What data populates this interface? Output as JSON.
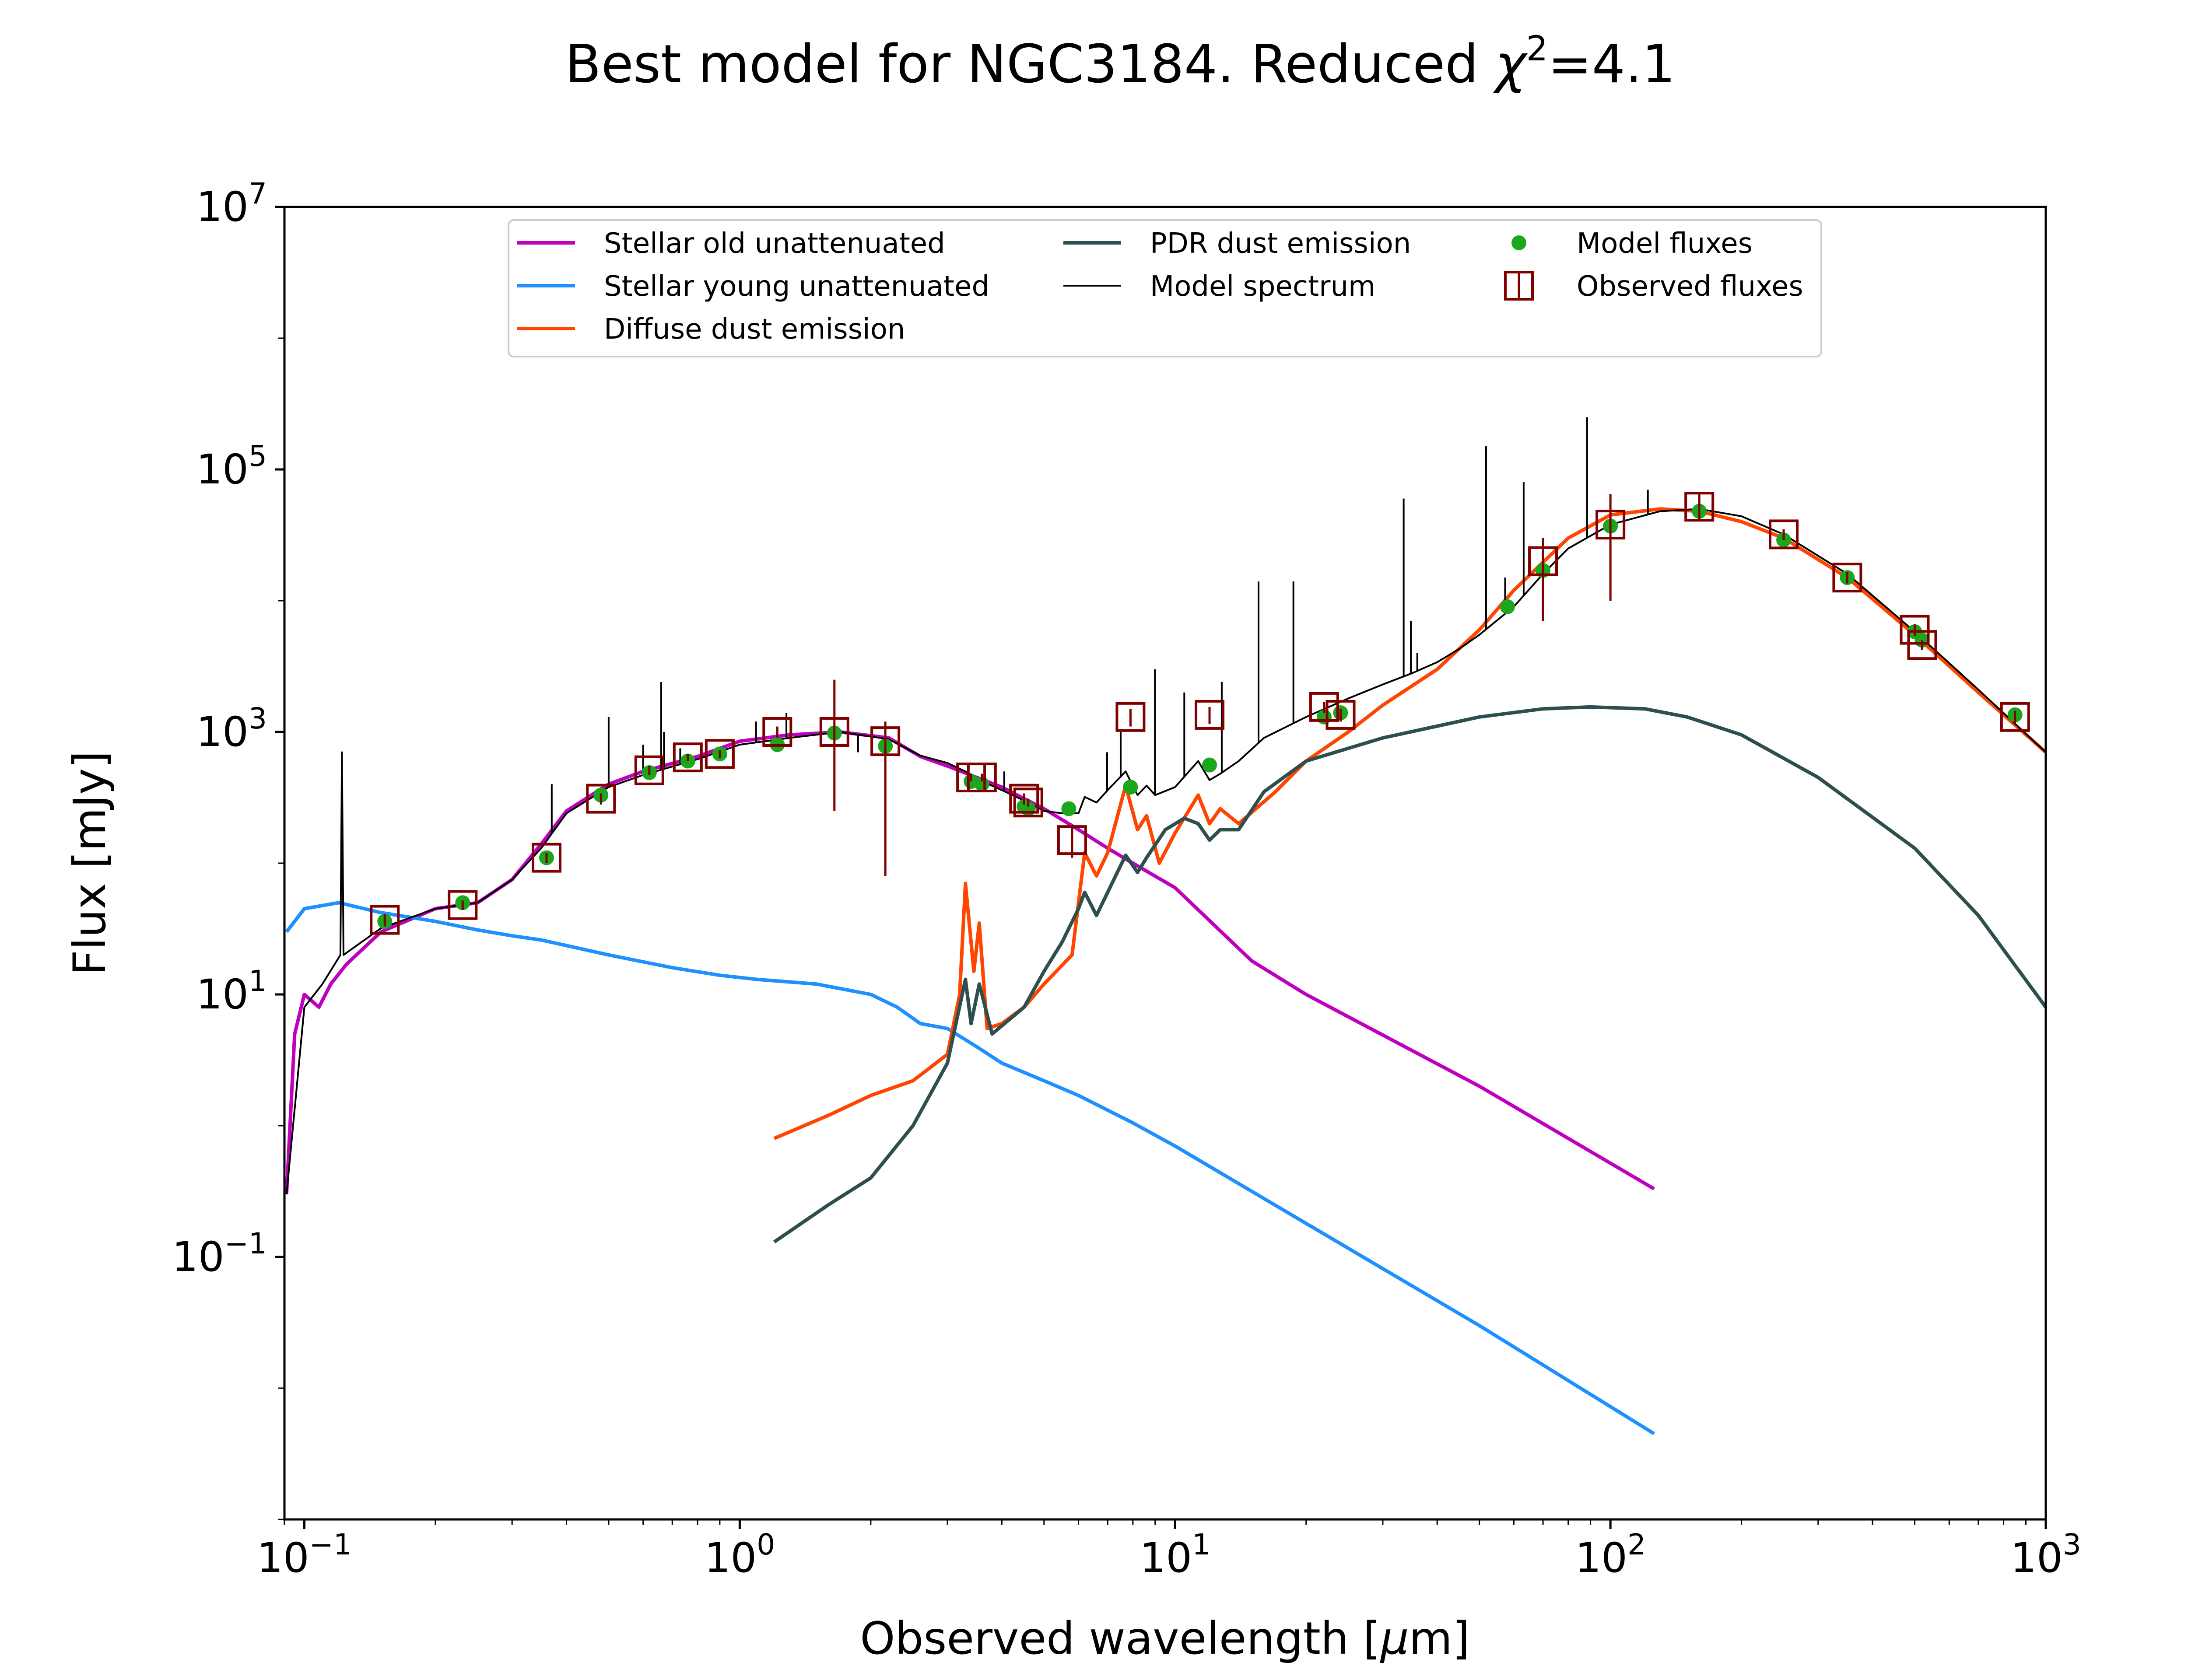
{
  "chart_data": {
    "type": "line",
    "title_main": "Best model for NGC3184. Reduced ",
    "title_chi": "χ",
    "title_chi_sup": "2",
    "title_value": "=4.1",
    "xlabel_prefix": "Observed wavelength [",
    "xlabel_unit_mu": "μ",
    "xlabel_suffix": "m]",
    "ylabel": "Flux [mJy]",
    "xscale": "log",
    "yscale": "log",
    "xlim": [
      0.09,
      1000
    ],
    "ylim": [
      0.001,
      10000000
    ],
    "x_ticks": [
      {
        "value": 0.1,
        "base": "10",
        "exp": "−1"
      },
      {
        "value": 1,
        "base": "10",
        "exp": "0"
      },
      {
        "value": 10,
        "base": "10",
        "exp": "1"
      },
      {
        "value": 100,
        "base": "10",
        "exp": "2"
      },
      {
        "value": 1000,
        "base": "10",
        "exp": "3"
      }
    ],
    "y_ticks": [
      {
        "value": 0.1,
        "base": "10",
        "exp": "−1"
      },
      {
        "value": 10,
        "base": "10",
        "exp": "1"
      },
      {
        "value": 1000,
        "base": "10",
        "exp": "3"
      },
      {
        "value": 100000,
        "base": "10",
        "exp": "5"
      },
      {
        "value": 10000000,
        "base": "10",
        "exp": "7"
      }
    ],
    "legend_position": "upper center",
    "legend": [
      {
        "label": "Stellar old unattenuated",
        "color": "#bf00bf",
        "marker": "line"
      },
      {
        "label": "Stellar young unattenuated",
        "color": "#1e90ff",
        "marker": "line"
      },
      {
        "label": "Diffuse dust emission",
        "color": "#ff4500",
        "marker": "line"
      },
      {
        "label": "PDR dust emission",
        "color": "#2f4f4f",
        "marker": "line"
      },
      {
        "label": "Model spectrum",
        "color": "#000000",
        "marker": "thin-line"
      },
      {
        "label": "Model fluxes",
        "color": "#1ca61c",
        "marker": "dot"
      },
      {
        "label": "Observed fluxes",
        "color": "#800000",
        "marker": "square"
      }
    ],
    "series": [
      {
        "name": "Stellar old unattenuated",
        "color": "#bf00bf",
        "x": [
          0.091,
          0.095,
          0.1,
          0.108,
          0.115,
          0.125,
          0.15,
          0.2,
          0.25,
          0.3,
          0.35,
          0.4,
          0.5,
          0.6,
          0.8,
          1.0,
          1.3,
          1.7,
          2.2,
          2.6,
          3.0,
          3.5,
          4.0,
          4.5,
          5.0,
          6.0,
          7.0,
          8.0,
          10.0,
          15.0,
          20.0,
          50.0,
          126.0
        ],
        "y": [
          0.3,
          5,
          10,
          8,
          12,
          17,
          30,
          45,
          50,
          75,
          140,
          250,
          400,
          500,
          650,
          850,
          950,
          1000,
          900,
          650,
          550,
          450,
          380,
          310,
          260,
          180,
          130,
          100,
          65,
          18,
          10,
          2.0,
          0.33
        ]
      },
      {
        "name": "Stellar young unattenuated",
        "color": "#1e90ff",
        "x": [
          0.091,
          0.1,
          0.12,
          0.15,
          0.2,
          0.25,
          0.3,
          0.35,
          0.5,
          0.7,
          0.9,
          1.1,
          1.5,
          2.0,
          2.3,
          2.6,
          3.0,
          3.5,
          4.0,
          5.0,
          6.0,
          8.0,
          10.0,
          20.0,
          50.0,
          126.0
        ],
        "y": [
          30,
          45,
          50,
          42,
          36,
          31,
          28,
          26,
          20,
          16,
          14,
          13,
          12,
          10,
          8,
          6,
          5.5,
          4,
          3.0,
          2.2,
          1.7,
          1.05,
          0.7,
          0.18,
          0.03,
          0.0045
        ]
      },
      {
        "name": "Diffuse dust emission",
        "color": "#ff4500",
        "x": [
          1.2,
          1.6,
          2.0,
          2.5,
          3.0,
          3.2,
          3.3,
          3.45,
          3.55,
          3.7,
          4.0,
          4.5,
          5.0,
          5.8,
          6.2,
          6.6,
          7.0,
          7.7,
          8.2,
          8.6,
          9.2,
          10.0,
          11.3,
          12.0,
          12.7,
          14.0,
          17.0,
          20.0,
          25.0,
          30.0,
          40.0,
          50.0,
          60.0,
          80.0,
          100.0,
          130.0,
          160.0,
          200.0,
          250.0,
          350.0,
          500.0,
          700.0,
          1000.0
        ],
        "y": [
          0.8,
          1.2,
          1.7,
          2.2,
          3.5,
          10,
          70,
          15,
          35,
          5.5,
          6,
          8,
          12,
          20,
          120,
          80,
          120,
          390,
          180,
          230,
          100,
          170,
          330,
          200,
          260,
          200,
          350,
          600,
          1000,
          1600,
          3000,
          6000,
          12000,
          30000,
          45000,
          50000,
          48000,
          40000,
          30000,
          15000,
          5500,
          2000,
          700
        ]
      },
      {
        "name": "PDR dust emission",
        "color": "#2f4f4f",
        "x": [
          1.2,
          1.6,
          2.0,
          2.5,
          3.0,
          3.3,
          3.4,
          3.55,
          3.8,
          4.5,
          5.0,
          5.5,
          6.0,
          6.2,
          6.6,
          7.0,
          7.7,
          8.2,
          8.6,
          9.5,
          10.5,
          11.3,
          12.0,
          12.7,
          14.0,
          16.0,
          20.0,
          30.0,
          50.0,
          70.0,
          90.0,
          120.0,
          150.0,
          200.0,
          300.0,
          500.0,
          700.0,
          1000.0
        ],
        "y": [
          0.13,
          0.25,
          0.4,
          1.0,
          3.0,
          13,
          6,
          12,
          5,
          8,
          15,
          25,
          45,
          60,
          40,
          60,
          115,
          85,
          110,
          180,
          220,
          200,
          150,
          180,
          180,
          350,
          600,
          900,
          1300,
          1500,
          1550,
          1500,
          1300,
          950,
          450,
          130,
          40,
          8
        ]
      },
      {
        "name": "Model spectrum",
        "color": "#000000",
        "x": [
          0.091,
          0.1,
          0.11,
          0.121,
          0.122,
          0.123,
          0.15,
          0.2,
          0.25,
          0.3,
          0.35,
          0.4,
          0.5,
          0.6,
          0.8,
          1.0,
          1.3,
          1.7,
          2.2,
          2.6,
          3.0,
          3.3,
          3.5,
          4.0,
          4.5,
          5.0,
          5.5,
          6.0,
          6.2,
          6.6,
          7.0,
          7.7,
          8.2,
          8.6,
          9.0,
          10.0,
          11.3,
          12.0,
          12.7,
          14.0,
          16.0,
          20.0,
          25.0,
          30.0,
          35.0,
          40.0,
          45.0,
          50.0,
          60.0,
          70.0,
          80.0,
          100.0,
          130.0,
          160.0,
          200.0,
          250.0,
          350.0,
          500.0,
          700.0,
          1000.0
        ],
        "y": [
          0.3,
          8,
          12,
          20,
          700,
          20,
          32,
          45,
          50,
          75,
          130,
          240,
          380,
          470,
          620,
          800,
          900,
          1000,
          880,
          660,
          580,
          500,
          440,
          360,
          300,
          250,
          240,
          240,
          320,
          290,
          360,
          500,
          330,
          390,
          330,
          380,
          600,
          430,
          480,
          600,
          900,
          1300,
          1800,
          2300,
          2800,
          3400,
          4300,
          5500,
          9000,
          16000,
          25000,
          38000,
          48000,
          50000,
          44000,
          32000,
          16000,
          5800,
          2100,
          700
        ]
      },
      {
        "name": "Model spectrum emission lines",
        "color": "#000000",
        "x": [
          0.122,
          0.37,
          0.5,
          0.6,
          0.66,
          0.67,
          0.73,
          1.09,
          1.28,
          1.87,
          4.05,
          6.98,
          7.5,
          8.99,
          10.5,
          12.8,
          15.55,
          18.7,
          33.5,
          34.8,
          36.0,
          51.8,
          57.3,
          63.2,
          88.4,
          121.9
        ],
        "y": [
          700,
          400,
          1300,
          800,
          2400,
          1000,
          750,
          1200,
          1400,
          700,
          500,
          700,
          1000,
          3000,
          2000,
          2400,
          14000,
          14000,
          60000,
          7000,
          4000,
          150000,
          15000,
          80000,
          250000,
          70000
        ]
      },
      {
        "name": "Model fluxes",
        "color": "#1ca61c",
        "x": [
          0.153,
          0.231,
          0.36,
          0.48,
          0.62,
          0.76,
          0.9,
          1.22,
          1.65,
          2.16,
          3.4,
          3.6,
          4.5,
          4.6,
          5.7,
          7.9,
          12.0,
          22.0,
          24.0,
          58.0,
          70.0,
          100.0,
          160.0,
          250.0,
          350.0,
          500.0,
          520.0,
          850.0
        ],
        "y": [
          36,
          50,
          110,
          330,
          490,
          600,
          680,
          800,
          980,
          780,
          420,
          400,
          270,
          260,
          260,
          380,
          560,
          1300,
          1400,
          9000,
          17000,
          37000,
          48000,
          29000,
          15000,
          5800,
          5000,
          1350
        ]
      },
      {
        "name": "Observed fluxes",
        "color": "#800000",
        "x": [
          0.153,
          0.231,
          0.36,
          0.48,
          0.62,
          0.76,
          0.9,
          1.22,
          1.65,
          2.16,
          3.4,
          3.6,
          4.5,
          4.6,
          5.8,
          7.9,
          12.0,
          22.0,
          24.0,
          70.0,
          100.0,
          160.0,
          250.0,
          350.0,
          500.0,
          520.0,
          850.0
        ],
        "y": [
          37,
          48,
          110,
          310,
          510,
          640,
          680,
          1000,
          1000,
          850,
          450,
          450,
          310,
          290,
          150,
          1300,
          1350,
          1550,
          1350,
          20000,
          38000,
          52000,
          32000,
          15000,
          6000,
          4600,
          1300
        ],
        "err_lo": [
          33,
          44,
          100,
          280,
          470,
          600,
          630,
          900,
          250,
          80,
          420,
          420,
          280,
          270,
          110,
          1100,
          1150,
          1400,
          1200,
          7000,
          10000,
          42000,
          29000,
          13500,
          5400,
          4200,
          1150
        ],
        "err_hi": [
          41,
          52,
          120,
          340,
          550,
          680,
          730,
          1100,
          2500,
          1200,
          480,
          480,
          340,
          310,
          190,
          1500,
          1550,
          1700,
          1500,
          30000,
          65000,
          65000,
          35000,
          16500,
          6600,
          5000,
          1450
        ]
      }
    ]
  }
}
